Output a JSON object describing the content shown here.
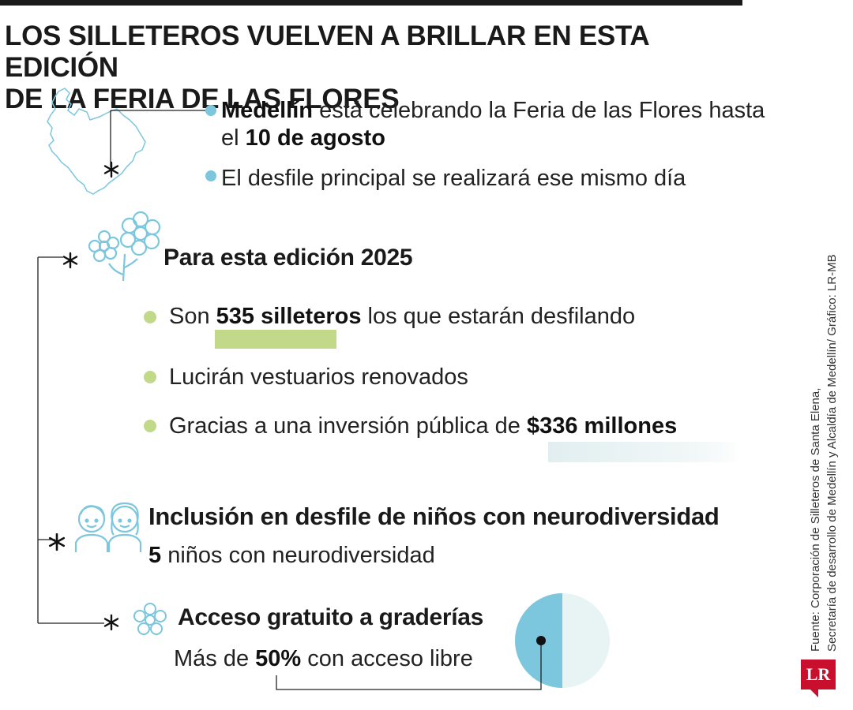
{
  "title": {
    "line1": "LOS SILLETEROS VUELVEN A BRILLAR EN ESTA EDICIÓN",
    "line2": "DE LA FERIA DE LAS FLORES"
  },
  "intro": {
    "bullet1": {
      "bold": "Medellín",
      "text": " está celebrando la Feria de las Flores hasta",
      "line2_prefix": "el ",
      "line2_bold": "10 de agosto"
    },
    "bullet2": "El desfile principal se realizará ese mismo día"
  },
  "edicion": {
    "heading": "Para esta edición 2025",
    "items": [
      {
        "prefix": "Son ",
        "bold": "535 silleteros",
        "suffix": " los que estarán desfilando"
      },
      {
        "prefix": "Lucirán vestuarios renovados",
        "bold": "",
        "suffix": ""
      },
      {
        "prefix": "Gracias a una inversión pública de ",
        "bold": "$336 millones",
        "suffix": ""
      }
    ]
  },
  "inclusion": {
    "heading": "Inclusión en desfile de niños con neurodiversidad",
    "bold": "5",
    "text": " niños con neurodiversidad"
  },
  "acceso": {
    "heading": "Acceso gratuito a graderías",
    "prefix": "Más de ",
    "bold": "50%",
    "suffix": " con acceso libre",
    "percent": 50
  },
  "source": {
    "line1": "Fuente:  Corporación de Silleteros de Santa Elena,",
    "line2": "Secretaría de desarrollo de Medellín y Alcaldía de Medellín/ Gráfico: LR-MB"
  },
  "logo": "LR",
  "colors": {
    "blue": "#7cc7de",
    "green": "#c2d98a",
    "pale": "#e8f3f4",
    "dark": "#1a1a1a"
  },
  "icons": [
    "map-icon",
    "flower-icon",
    "children-icon",
    "small-flower-icon",
    "asterisk-icon"
  ]
}
